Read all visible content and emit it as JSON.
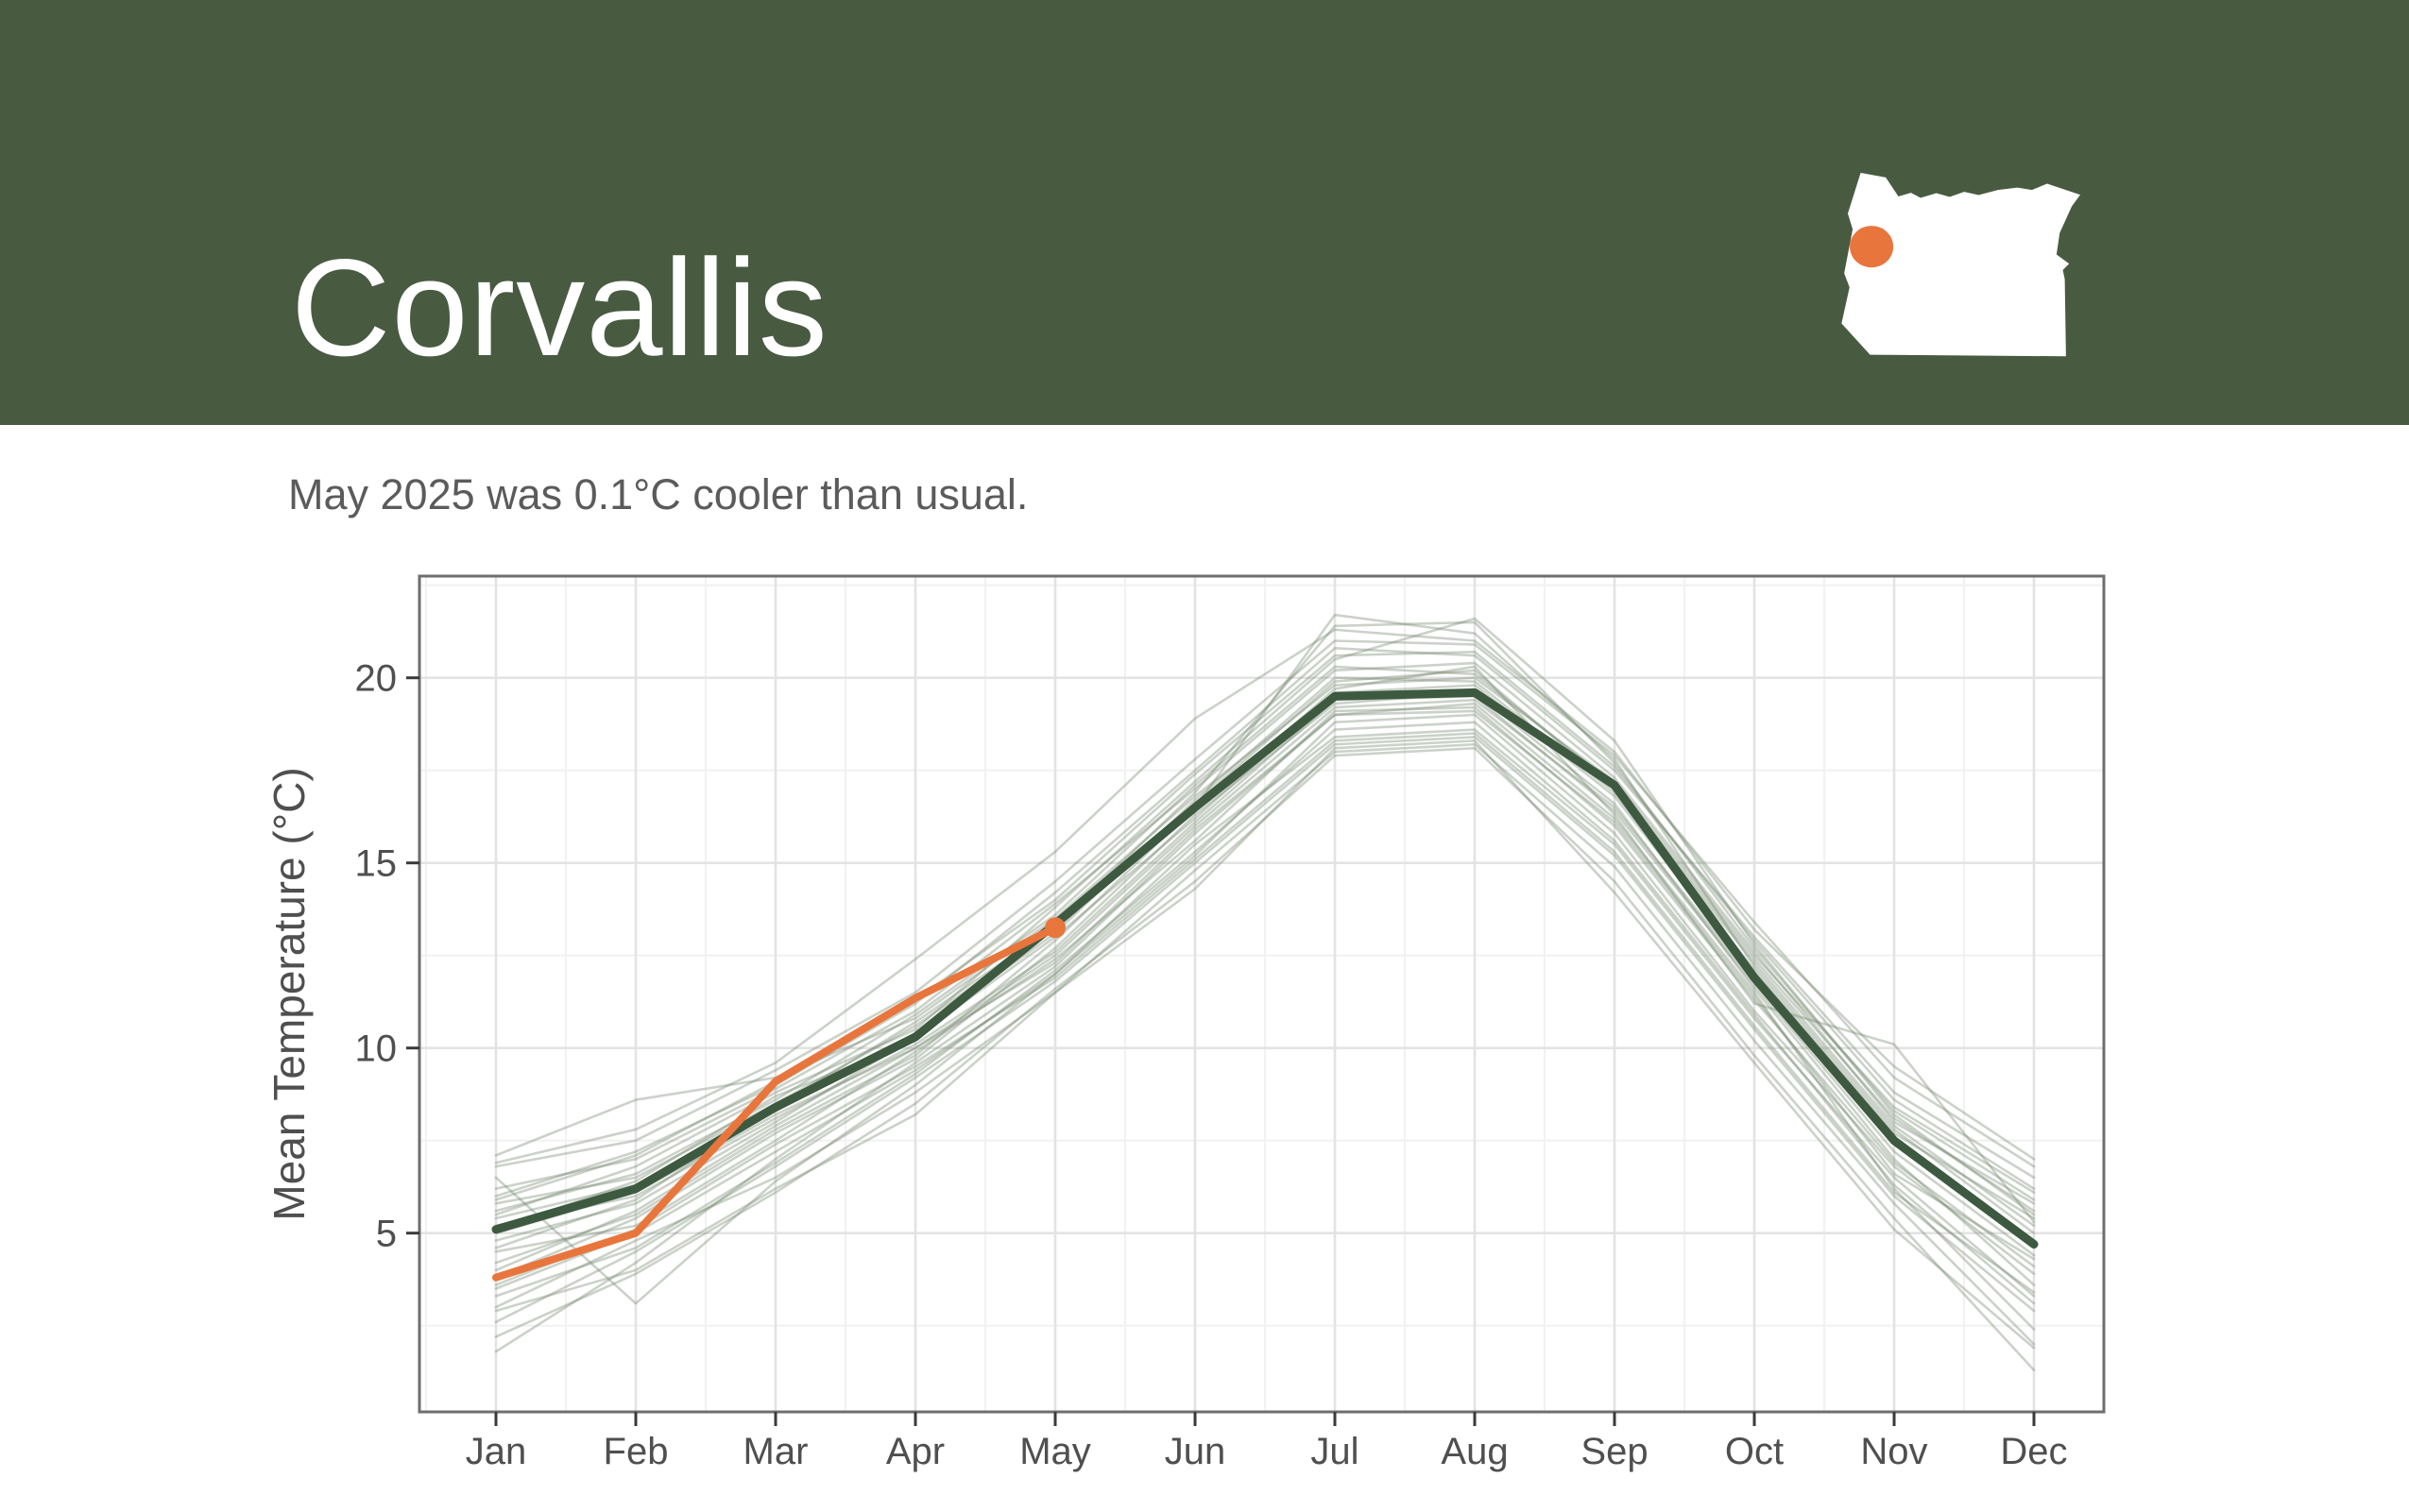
{
  "header": {
    "title": "Corvallis",
    "band_color": "#485b41",
    "map_fill": "#ffffff",
    "location_dot_color": "#e8763c"
  },
  "subtitle": "May 2025 was 0.1°C cooler than usual.",
  "chart_data": {
    "type": "line",
    "title": "",
    "xlabel": "",
    "ylabel": "Mean Temperature (°C)",
    "categories": [
      "Jan",
      "Feb",
      "Mar",
      "Apr",
      "May",
      "Jun",
      "Jul",
      "Aug",
      "Sep",
      "Oct",
      "Nov",
      "Dec"
    ],
    "yticks": [
      5,
      10,
      15,
      20
    ],
    "ylim": [
      0.2,
      22.75
    ],
    "grid": "major+minor, light gray on white, full panel border",
    "legend": "none",
    "colors": {
      "historical_years": "rgba(118,136,112,0.38)",
      "average": "#3d5a40",
      "current_year": "#e8763c"
    },
    "series": [
      {
        "name": "historical-years",
        "role": "background",
        "values": [
          [
            5.0,
            6.1,
            8.2,
            10.0,
            12.5,
            16.0,
            19.2,
            19.4,
            16.5,
            11.8,
            7.4,
            4.6
          ],
          [
            6.5,
            3.1,
            6.4,
            9.0,
            12.0,
            15.2,
            18.8,
            19.0,
            15.8,
            11.0,
            6.8,
            3.9
          ],
          [
            1.8,
            4.2,
            7.0,
            9.6,
            12.2,
            15.8,
            19.0,
            19.3,
            16.2,
            11.5,
            6.2,
            2.4
          ],
          [
            7.1,
            8.6,
            9.2,
            10.8,
            13.5,
            16.8,
            19.8,
            20.0,
            17.2,
            12.5,
            8.4,
            6.1
          ],
          [
            4.2,
            5.5,
            7.8,
            9.8,
            12.9,
            16.5,
            21.7,
            21.2,
            17.8,
            12.2,
            7.8,
            5.0
          ],
          [
            5.5,
            6.8,
            8.8,
            10.5,
            13.8,
            17.2,
            20.5,
            21.6,
            18.3,
            12.8,
            8.2,
            5.5
          ],
          [
            3.5,
            5.0,
            7.2,
            9.4,
            12.0,
            15.5,
            18.4,
            18.6,
            15.5,
            10.8,
            6.5,
            3.3
          ],
          [
            6.0,
            7.2,
            9.0,
            11.2,
            14.2,
            17.5,
            20.8,
            20.6,
            17.5,
            13.0,
            8.8,
            6.5
          ],
          [
            4.8,
            5.8,
            8.0,
            10.3,
            13.0,
            16.2,
            19.6,
            19.8,
            16.8,
            12.0,
            7.6,
            4.8
          ],
          [
            2.6,
            4.5,
            6.8,
            9.2,
            11.8,
            15.0,
            18.2,
            18.4,
            15.2,
            10.5,
            6.0,
            2.9
          ],
          [
            5.8,
            6.5,
            8.5,
            10.6,
            13.2,
            16.6,
            19.9,
            20.2,
            17.0,
            12.3,
            7.9,
            5.2
          ],
          [
            6.8,
            7.5,
            9.4,
            11.5,
            14.5,
            17.8,
            21.0,
            20.9,
            17.9,
            13.4,
            9.2,
            6.8
          ],
          [
            3.0,
            4.8,
            6.5,
            8.8,
            11.5,
            14.8,
            18.0,
            18.2,
            14.9,
            10.2,
            5.8,
            2.0
          ],
          [
            5.2,
            6.0,
            8.1,
            10.1,
            12.6,
            16.1,
            19.4,
            19.5,
            16.4,
            11.7,
            7.2,
            4.4
          ],
          [
            4.5,
            5.2,
            7.5,
            9.9,
            12.4,
            15.6,
            19.1,
            19.2,
            16.0,
            11.3,
            6.9,
            4.1
          ],
          [
            6.2,
            7.0,
            8.9,
            11.0,
            13.9,
            17.0,
            20.2,
            20.4,
            17.3,
            12.6,
            8.0,
            5.8
          ],
          [
            3.8,
            5.4,
            7.7,
            9.7,
            12.7,
            16.3,
            19.3,
            19.6,
            16.6,
            11.6,
            7.0,
            3.6
          ],
          [
            5.4,
            6.3,
            8.3,
            10.4,
            13.1,
            16.7,
            20.0,
            19.9,
            16.9,
            12.1,
            7.7,
            5.4
          ],
          [
            2.2,
            3.9,
            6.1,
            8.5,
            11.6,
            14.5,
            17.9,
            18.1,
            14.5,
            9.8,
            5.4,
            1.3
          ],
          [
            6.9,
            7.8,
            9.6,
            12.4,
            15.3,
            18.9,
            21.3,
            21.0,
            18.0,
            13.2,
            9.5,
            7.0
          ],
          [
            4.0,
            5.6,
            7.9,
            10.0,
            12.3,
            15.9,
            19.0,
            19.1,
            16.1,
            11.4,
            6.6,
            4.3
          ],
          [
            5.6,
            6.6,
            8.6,
            10.9,
            13.6,
            17.1,
            20.3,
            20.1,
            17.1,
            12.4,
            8.1,
            5.6
          ],
          [
            3.3,
            4.6,
            6.9,
            9.3,
            12.1,
            15.3,
            18.6,
            18.8,
            15.6,
            10.9,
            6.3,
            3.1
          ],
          [
            5.9,
            7.1,
            9.1,
            11.3,
            14.0,
            17.4,
            20.6,
            20.7,
            17.6,
            12.9,
            8.6,
            6.2
          ],
          [
            4.6,
            5.9,
            8.4,
            10.7,
            13.3,
            16.9,
            21.4,
            21.5,
            17.7,
            12.7,
            8.3,
            5.9
          ],
          [
            3.6,
            5.1,
            7.4,
            9.5,
            11.9,
            15.1,
            18.3,
            18.5,
            15.3,
            10.6,
            6.1,
            3.4
          ],
          [
            5.1,
            6.4,
            8.7,
            10.2,
            13.4,
            16.4,
            19.7,
            20.3,
            16.3,
            11.2,
            10.1,
            5.3
          ],
          [
            2.9,
            4.0,
            6.2,
            8.2,
            11.5,
            14.3,
            18.1,
            18.3,
            14.2,
            9.6,
            5.1,
            1.9
          ]
        ]
      },
      {
        "name": "average",
        "role": "climatology",
        "values": [
          5.1,
          6.2,
          8.4,
          10.3,
          13.35,
          16.5,
          19.5,
          19.6,
          17.1,
          11.9,
          7.5,
          4.7
        ]
      },
      {
        "name": "2025",
        "role": "current-year",
        "endpoint_dot": true,
        "values": [
          3.8,
          5.0,
          9.1,
          11.35,
          13.25
        ]
      }
    ]
  }
}
